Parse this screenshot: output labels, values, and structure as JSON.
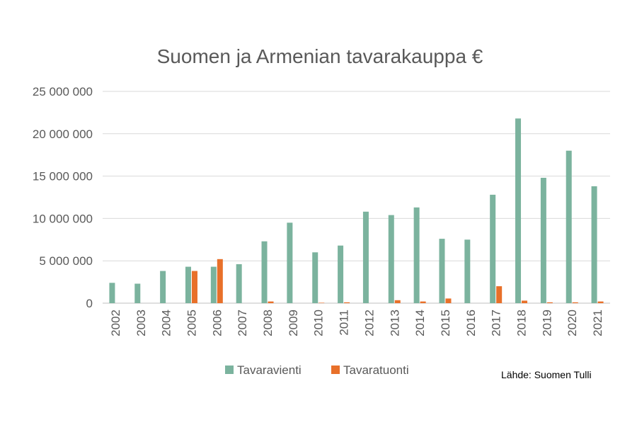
{
  "chart_data": {
    "type": "bar",
    "title": "Suomen ja Armenian tavarakauppa €",
    "categories": [
      "2002",
      "2003",
      "2004",
      "2005",
      "2006",
      "2007",
      "2008",
      "2009",
      "2010",
      "2011",
      "2012",
      "2013",
      "2014",
      "2015",
      "2016",
      "2017",
      "2018",
      "2019",
      "2020",
      "2021"
    ],
    "series": [
      {
        "name": "Tavaravienti",
        "color": "#7bb39e",
        "values": [
          2400000,
          2300000,
          3800000,
          4300000,
          4300000,
          4600000,
          7300000,
          9500000,
          6000000,
          6800000,
          10800000,
          10400000,
          11300000,
          7600000,
          7500000,
          12800000,
          21800000,
          14800000,
          18000000,
          13800000
        ]
      },
      {
        "name": "Tavaratuonti",
        "color": "#e8702a",
        "values": [
          0,
          0,
          0,
          3800000,
          5200000,
          0,
          200000,
          0,
          50000,
          100000,
          0,
          350000,
          200000,
          550000,
          0,
          2000000,
          300000,
          100000,
          100000,
          200000
        ]
      }
    ],
    "yticks": [
      "0",
      "5 000 000",
      "10 000 000",
      "15 000 000",
      "20 000 000",
      "25 000 000"
    ],
    "ylim": [
      0,
      25000000
    ],
    "grid": true,
    "legend_position": "bottom",
    "source_note": "Lähde: Suomen Tulli"
  }
}
